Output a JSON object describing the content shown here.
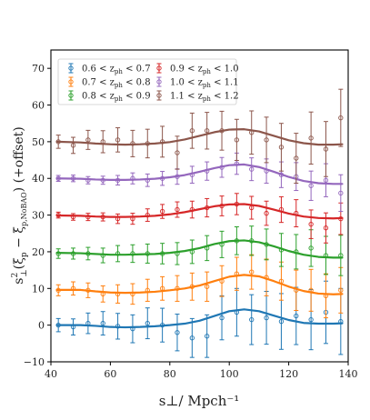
{
  "chart_data": {
    "type": "scatter",
    "xlabel": "s⊥/   Mpch⁻¹",
    "ylabel_parts": {
      "pre": "s",
      "pre_sub": "⊥",
      "pre_sup": "2",
      "mid": "(ξ",
      "mid_sub1": "p",
      "mid_minus": " − ξ",
      "mid_sub2": "p,NoBAO",
      "post": ") (+offset)"
    },
    "xlim": [
      40,
      140
    ],
    "ylim": [
      -10,
      75
    ],
    "xticks": [
      40,
      60,
      80,
      100,
      120,
      140
    ],
    "yticks": [
      -10,
      0,
      10,
      20,
      30,
      40,
      50,
      60,
      70
    ],
    "legend_position": "top-left",
    "legend_columns": 2,
    "series": [
      {
        "name_parts": [
          "0.6 < z",
          "ph",
          " < 0.7"
        ],
        "color": "#1f77b4",
        "points": [
          [
            42.5,
            0.0,
            1.8
          ],
          [
            47.5,
            -0.5,
            2.2
          ],
          [
            52.5,
            0.5,
            2.8
          ],
          [
            57.5,
            0.5,
            3.2
          ],
          [
            62.5,
            -0.3,
            3.5
          ],
          [
            67.5,
            -1.0,
            3.8
          ],
          [
            72.5,
            0.5,
            4.2
          ],
          [
            77.5,
            0.0,
            4.6
          ],
          [
            82.5,
            -2.0,
            5.0
          ],
          [
            87.5,
            -3.5,
            5.3
          ],
          [
            92.5,
            -3.0,
            5.8
          ],
          [
            97.5,
            2.0,
            6.0
          ],
          [
            102.5,
            3.5,
            6.5
          ],
          [
            107.5,
            1.5,
            6.8
          ],
          [
            112.5,
            2.0,
            7.2
          ],
          [
            117.5,
            1.0,
            7.6
          ],
          [
            122.5,
            2.5,
            7.8
          ],
          [
            127.5,
            1.5,
            8.2
          ],
          [
            132.5,
            3.5,
            8.5
          ],
          [
            137.5,
            1.0,
            9.0
          ]
        ],
        "model": [
          [
            42,
            0.0
          ],
          [
            50,
            0.0
          ],
          [
            55,
            -0.2
          ],
          [
            60,
            -0.5
          ],
          [
            65,
            -0.6
          ],
          [
            70,
            -0.5
          ],
          [
            75,
            -0.3
          ],
          [
            80,
            0.0
          ],
          [
            85,
            0.4
          ],
          [
            90,
            1.2
          ],
          [
            95,
            2.5
          ],
          [
            100,
            3.8
          ],
          [
            105,
            4.3
          ],
          [
            110,
            3.8
          ],
          [
            115,
            2.6
          ],
          [
            120,
            1.4
          ],
          [
            125,
            0.6
          ],
          [
            130,
            0.4
          ],
          [
            135,
            0.4
          ],
          [
            138,
            0.5
          ]
        ]
      },
      {
        "name_parts": [
          "0.7 < z",
          "ph",
          " < 0.8"
        ],
        "color": "#ff7f0e",
        "points": [
          [
            42.5,
            9.5,
            1.5
          ],
          [
            47.5,
            10.0,
            1.8
          ],
          [
            52.5,
            9.5,
            2.0
          ],
          [
            57.5,
            8.5,
            2.2
          ],
          [
            62.5,
            8.5,
            2.5
          ],
          [
            67.5,
            8.5,
            2.8
          ],
          [
            72.5,
            9.5,
            3.0
          ],
          [
            77.5,
            10.0,
            3.2
          ],
          [
            82.5,
            10.0,
            3.5
          ],
          [
            87.5,
            10.5,
            3.7
          ],
          [
            92.5,
            10.5,
            4.0
          ],
          [
            97.5,
            12.0,
            4.2
          ],
          [
            102.5,
            14.0,
            4.5
          ],
          [
            107.5,
            14.5,
            4.7
          ],
          [
            112.5,
            13.0,
            5.0
          ],
          [
            117.5,
            12.0,
            5.2
          ],
          [
            122.5,
            9.5,
            5.5
          ],
          [
            127.5,
            9.5,
            5.7
          ],
          [
            132.5,
            8.0,
            6.0
          ],
          [
            137.5,
            9.5,
            6.2
          ]
        ],
        "model": [
          [
            42,
            9.6
          ],
          [
            50,
            9.6
          ],
          [
            55,
            9.2
          ],
          [
            60,
            8.9
          ],
          [
            65,
            8.8
          ],
          [
            70,
            8.9
          ],
          [
            75,
            9.1
          ],
          [
            80,
            9.5
          ],
          [
            85,
            10.0
          ],
          [
            90,
            10.8
          ],
          [
            95,
            12.0
          ],
          [
            100,
            13.2
          ],
          [
            105,
            13.7
          ],
          [
            110,
            13.3
          ],
          [
            115,
            12.0
          ],
          [
            120,
            10.5
          ],
          [
            125,
            9.3
          ],
          [
            130,
            8.6
          ],
          [
            135,
            8.4
          ],
          [
            138,
            8.5
          ]
        ]
      },
      {
        "name_parts": [
          "0.8 < z",
          "ph",
          " < 0.9"
        ],
        "color": "#2ca02c",
        "points": [
          [
            42.5,
            19.5,
            1.3
          ],
          [
            47.5,
            19.5,
            1.5
          ],
          [
            52.5,
            19.5,
            1.7
          ],
          [
            57.5,
            19.0,
            2.0
          ],
          [
            62.5,
            19.5,
            2.2
          ],
          [
            67.5,
            19.5,
            2.4
          ],
          [
            72.5,
            19.5,
            2.6
          ],
          [
            77.5,
            19.5,
            2.8
          ],
          [
            82.5,
            19.5,
            3.0
          ],
          [
            87.5,
            20.0,
            3.2
          ],
          [
            92.5,
            21.0,
            3.4
          ],
          [
            97.5,
            22.0,
            3.6
          ],
          [
            102.5,
            23.0,
            3.8
          ],
          [
            107.5,
            23.0,
            4.0
          ],
          [
            112.5,
            22.0,
            4.2
          ],
          [
            117.5,
            20.5,
            4.5
          ],
          [
            122.5,
            20.0,
            4.7
          ],
          [
            127.5,
            21.0,
            5.0
          ],
          [
            132.5,
            19.0,
            5.2
          ],
          [
            137.5,
            19.0,
            5.5
          ]
        ],
        "model": [
          [
            42,
            19.7
          ],
          [
            50,
            19.6
          ],
          [
            55,
            19.4
          ],
          [
            60,
            19.2
          ],
          [
            65,
            19.2
          ],
          [
            70,
            19.3
          ],
          [
            75,
            19.4
          ],
          [
            80,
            19.7
          ],
          [
            85,
            20.2
          ],
          [
            90,
            21.0
          ],
          [
            95,
            22.1
          ],
          [
            100,
            22.9
          ],
          [
            105,
            23.1
          ],
          [
            110,
            22.6
          ],
          [
            115,
            21.5
          ],
          [
            120,
            20.2
          ],
          [
            125,
            19.2
          ],
          [
            130,
            18.6
          ],
          [
            135,
            18.4
          ],
          [
            138,
            18.4
          ]
        ]
      },
      {
        "name_parts": [
          "0.9 < z",
          "ph",
          " < 1.0"
        ],
        "color": "#d62728",
        "points": [
          [
            42.5,
            30.0,
            0.8
          ],
          [
            47.5,
            29.5,
            0.9
          ],
          [
            52.5,
            29.5,
            1.0
          ],
          [
            57.5,
            29.5,
            1.1
          ],
          [
            62.5,
            29.0,
            1.3
          ],
          [
            67.5,
            29.0,
            1.5
          ],
          [
            72.5,
            30.0,
            1.7
          ],
          [
            77.5,
            31.0,
            1.9
          ],
          [
            82.5,
            31.5,
            2.1
          ],
          [
            87.5,
            31.5,
            2.3
          ],
          [
            92.5,
            32.0,
            2.5
          ],
          [
            97.5,
            32.5,
            2.7
          ],
          [
            102.5,
            33.0,
            2.9
          ],
          [
            107.5,
            32.0,
            3.1
          ],
          [
            112.5,
            30.5,
            3.3
          ],
          [
            117.5,
            31.5,
            3.5
          ],
          [
            122.5,
            30.5,
            3.7
          ],
          [
            127.5,
            27.5,
            3.9
          ],
          [
            132.5,
            26.5,
            4.1
          ],
          [
            137.5,
            29.0,
            4.3
          ]
        ],
        "model": [
          [
            42,
            29.9
          ],
          [
            50,
            29.8
          ],
          [
            55,
            29.6
          ],
          [
            60,
            29.5
          ],
          [
            65,
            29.5
          ],
          [
            70,
            29.6
          ],
          [
            75,
            29.8
          ],
          [
            80,
            30.2
          ],
          [
            85,
            30.8
          ],
          [
            90,
            31.6
          ],
          [
            95,
            32.4
          ],
          [
            100,
            32.9
          ],
          [
            105,
            33.0
          ],
          [
            110,
            32.5
          ],
          [
            115,
            31.5
          ],
          [
            120,
            30.4
          ],
          [
            125,
            29.6
          ],
          [
            130,
            29.2
          ],
          [
            135,
            29.1
          ],
          [
            138,
            29.2
          ]
        ]
      },
      {
        "name_parts": [
          "1.0 < z",
          "ph",
          " < 1.1"
        ],
        "color": "#9467bd",
        "points": [
          [
            42.5,
            40.0,
            0.8
          ],
          [
            47.5,
            40.0,
            0.9
          ],
          [
            52.5,
            39.5,
            1.0
          ],
          [
            57.5,
            39.5,
            1.1
          ],
          [
            62.5,
            39.5,
            1.3
          ],
          [
            67.5,
            40.0,
            1.5
          ],
          [
            72.5,
            39.5,
            1.7
          ],
          [
            77.5,
            40.0,
            1.9
          ],
          [
            82.5,
            40.5,
            2.1
          ],
          [
            87.5,
            41.0,
            2.3
          ],
          [
            92.5,
            42.0,
            2.5
          ],
          [
            97.5,
            43.0,
            2.7
          ],
          [
            102.5,
            44.0,
            2.9
          ],
          [
            107.5,
            42.5,
            3.1
          ],
          [
            112.5,
            42.0,
            3.3
          ],
          [
            117.5,
            41.0,
            3.5
          ],
          [
            122.5,
            40.5,
            3.8
          ],
          [
            127.5,
            38.0,
            4.0
          ],
          [
            132.5,
            39.5,
            4.5
          ],
          [
            137.5,
            36.0,
            5.0
          ]
        ],
        "model": [
          [
            42,
            40.0
          ],
          [
            50,
            39.9
          ],
          [
            55,
            39.7
          ],
          [
            60,
            39.6
          ],
          [
            65,
            39.6
          ],
          [
            70,
            39.7
          ],
          [
            75,
            39.9
          ],
          [
            80,
            40.3
          ],
          [
            85,
            40.9
          ],
          [
            90,
            41.8
          ],
          [
            95,
            42.8
          ],
          [
            100,
            43.6
          ],
          [
            105,
            43.8
          ],
          [
            110,
            43.1
          ],
          [
            115,
            41.8
          ],
          [
            120,
            40.4
          ],
          [
            125,
            39.3
          ],
          [
            130,
            38.7
          ],
          [
            135,
            38.5
          ],
          [
            138,
            38.5
          ]
        ]
      },
      {
        "name_parts": [
          "1.1 < z",
          "ph",
          " < 1.2"
        ],
        "color": "#8c564b",
        "points": [
          [
            42.5,
            50.0,
            1.8
          ],
          [
            47.5,
            49.0,
            2.2
          ],
          [
            52.5,
            50.5,
            2.6
          ],
          [
            57.5,
            50.0,
            3.0
          ],
          [
            62.5,
            50.5,
            3.3
          ],
          [
            67.5,
            49.5,
            3.6
          ],
          [
            72.5,
            49.5,
            3.9
          ],
          [
            77.5,
            50.0,
            4.2
          ],
          [
            82.5,
            47.0,
            4.5
          ],
          [
            87.5,
            53.0,
            4.8
          ],
          [
            92.5,
            53.0,
            5.0
          ],
          [
            97.5,
            53.0,
            5.3
          ],
          [
            102.5,
            50.5,
            5.6
          ],
          [
            107.5,
            52.5,
            5.9
          ],
          [
            112.5,
            50.5,
            6.2
          ],
          [
            117.5,
            48.5,
            6.5
          ],
          [
            122.5,
            45.5,
            6.8
          ],
          [
            127.5,
            51.0,
            7.1
          ],
          [
            132.5,
            48.0,
            7.5
          ],
          [
            137.5,
            56.5,
            7.8
          ]
        ],
        "model": [
          [
            42,
            50.0
          ],
          [
            50,
            49.8
          ],
          [
            55,
            49.5
          ],
          [
            60,
            49.3
          ],
          [
            65,
            49.2
          ],
          [
            70,
            49.3
          ],
          [
            75,
            49.5
          ],
          [
            80,
            49.9
          ],
          [
            85,
            50.6
          ],
          [
            90,
            51.6
          ],
          [
            95,
            52.6
          ],
          [
            100,
            53.3
          ],
          [
            105,
            53.4
          ],
          [
            110,
            52.8
          ],
          [
            115,
            51.6
          ],
          [
            120,
            50.4
          ],
          [
            125,
            49.6
          ],
          [
            130,
            49.2
          ],
          [
            135,
            49.2
          ],
          [
            138,
            49.3
          ]
        ]
      }
    ]
  }
}
